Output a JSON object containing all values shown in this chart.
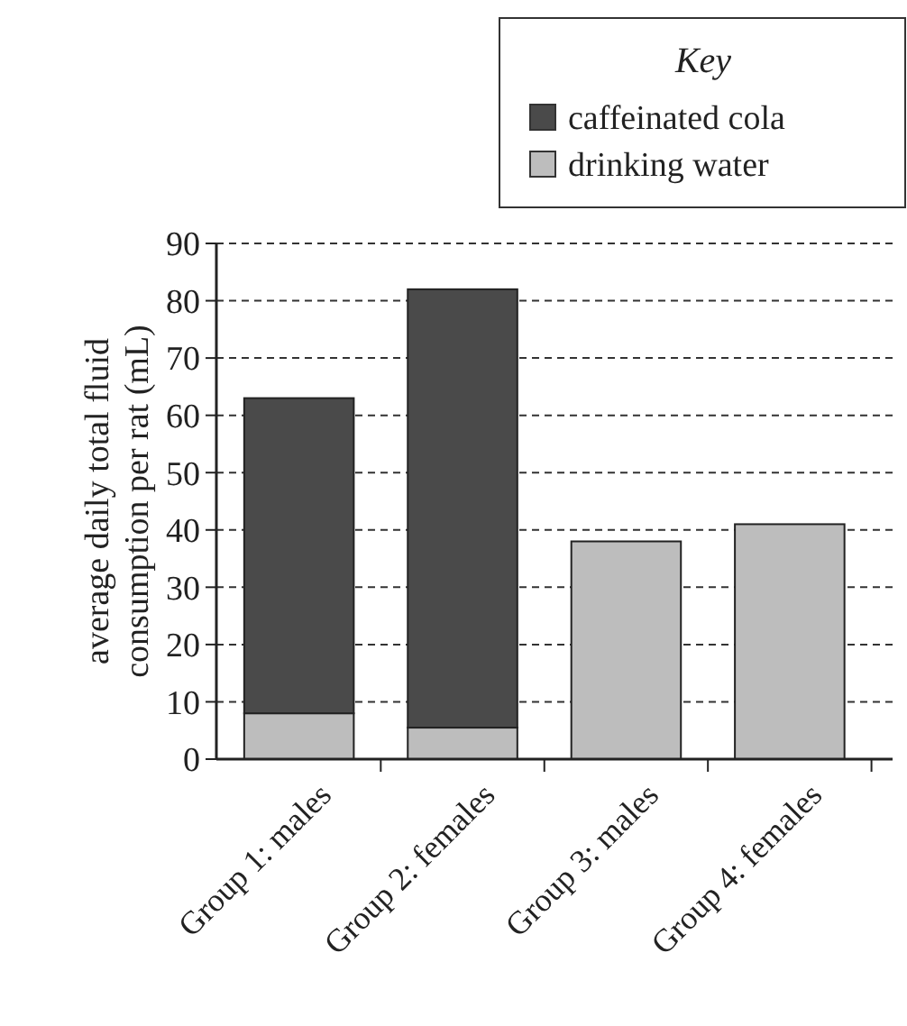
{
  "chart_data": {
    "type": "bar",
    "stacked": true,
    "ylabel": "average daily total fluid\nconsumption per rat (mL)",
    "legend_title": "Key",
    "categories": [
      "Group 1: males",
      "Group 2: females",
      "Group 3: males",
      "Group 4: females"
    ],
    "series": [
      {
        "name": "drinking water",
        "color": "#bdbdbd",
        "values": [
          8,
          5.5,
          38,
          41
        ]
      },
      {
        "name": "caffeinated cola",
        "color": "#4a4a4a",
        "values": [
          55,
          76.5,
          null,
          null
        ]
      }
    ],
    "ylim": [
      0,
      90
    ],
    "yticks": [
      0,
      10,
      20,
      30,
      40,
      50,
      60,
      70,
      80,
      90
    ],
    "grid": "y",
    "legend": "top right"
  }
}
